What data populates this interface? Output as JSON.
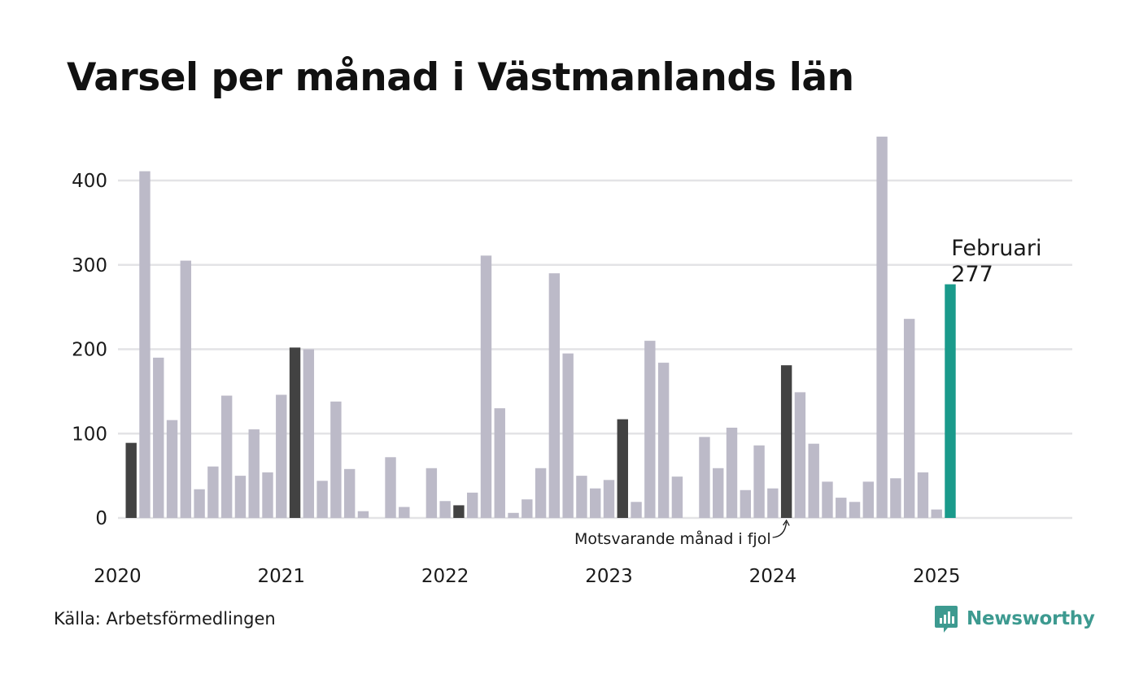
{
  "colors": {
    "bar": "#bcbac8",
    "same_month_highlight": "#424242",
    "current": "#1a9a8b",
    "grid": "#e3e3e6",
    "brand": "#3d9a90"
  },
  "chart_data": {
    "type": "bar",
    "title": "Varsel per månad i Västmanlands län",
    "xlabel": "",
    "ylabel": "",
    "ylim": [
      0,
      460
    ],
    "yticks": [
      0,
      100,
      200,
      300,
      400
    ],
    "grid": true,
    "x_tick_labels": [
      "2020",
      "2021",
      "2022",
      "2023",
      "2024",
      "2025"
    ],
    "months": [
      "2020-02",
      "2020-03",
      "2020-04",
      "2020-05",
      "2020-06",
      "2020-07",
      "2020-08",
      "2020-09",
      "2020-10",
      "2020-11",
      "2020-12",
      "2021-01",
      "2021-02",
      "2021-03",
      "2021-04",
      "2021-05",
      "2021-06",
      "2021-07",
      "2021-08",
      "2021-09",
      "2021-10",
      "2021-11",
      "2021-12",
      "2022-01",
      "2022-02",
      "2022-03",
      "2022-04",
      "2022-05",
      "2022-06",
      "2022-07",
      "2022-08",
      "2022-09",
      "2022-10",
      "2022-11",
      "2022-12",
      "2023-01",
      "2023-02",
      "2023-03",
      "2023-04",
      "2023-05",
      "2023-06",
      "2023-07",
      "2023-08",
      "2023-09",
      "2023-10",
      "2023-11",
      "2023-12",
      "2024-01",
      "2024-02",
      "2024-03",
      "2024-04",
      "2024-05",
      "2024-06",
      "2024-07",
      "2024-08",
      "2024-09",
      "2024-10",
      "2024-11",
      "2024-12",
      "2025-01",
      "2025-02"
    ],
    "values": [
      89,
      411,
      190,
      116,
      305,
      34,
      61,
      145,
      50,
      105,
      54,
      146,
      202,
      200,
      44,
      138,
      58,
      8,
      0,
      72,
      13,
      0,
      59,
      20,
      15,
      30,
      311,
      130,
      6,
      22,
      59,
      290,
      195,
      50,
      35,
      45,
      117,
      19,
      210,
      184,
      49,
      0,
      96,
      59,
      107,
      33,
      86,
      35,
      181,
      149,
      88,
      43,
      24,
      19,
      43,
      452,
      47,
      236,
      54,
      10,
      277
    ],
    "highlighted_months": [
      "2020-02",
      "2021-02",
      "2022-02",
      "2023-02",
      "2024-02"
    ],
    "current_month": "2025-02",
    "annotations": {
      "current_label": "Februari",
      "current_value": "277",
      "previous_year": "Motsvarande månad i fjol"
    }
  },
  "footer": {
    "source": "Källa: Arbetsförmedlingen",
    "brand": "Newsworthy"
  }
}
